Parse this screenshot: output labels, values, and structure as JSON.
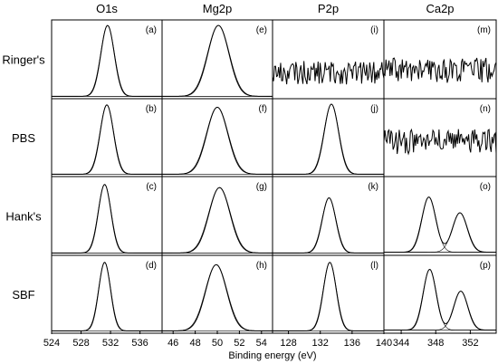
{
  "chart_data": {
    "type": "line",
    "columns": [
      "O1s",
      "Mg2p",
      "P2p",
      "Ca2p"
    ],
    "rows": [
      "Ringer's",
      "PBS",
      "Hank's",
      "SBF"
    ],
    "xlabel": "Binding energy (eV)",
    "ticks": [
      {
        "values": [
          524,
          528,
          532,
          536
        ],
        "labels": [
          "524",
          "528",
          "532",
          "536"
        ]
      },
      {
        "values": [
          46,
          48,
          50,
          52,
          54
        ],
        "labels": [
          "46",
          "48",
          "50",
          "52",
          "54"
        ]
      },
      {
        "values": [
          128,
          132,
          136,
          140
        ],
        "labels": [
          "128",
          "132",
          "136",
          "140"
        ]
      },
      {
        "values": [
          344,
          348,
          352
        ],
        "labels": [
          "344",
          "348",
          "352"
        ]
      }
    ],
    "xranges": [
      [
        524,
        539
      ],
      [
        45,
        55
      ],
      [
        126,
        140
      ],
      [
        342,
        355
      ]
    ],
    "panels": [
      {
        "label": "(a)",
        "row": 0,
        "col": 0,
        "kind": "peaks",
        "peaks": [
          {
            "center": 531.6,
            "sigma": 0.9,
            "height": 0.9
          }
        ],
        "baseline": 0.03
      },
      {
        "label": "(e)",
        "row": 0,
        "col": 1,
        "kind": "peaks",
        "peaks": [
          {
            "center": 50.1,
            "sigma": 0.95,
            "height": 0.9
          }
        ],
        "baseline": 0.03
      },
      {
        "label": "(i)",
        "row": 0,
        "col": 2,
        "kind": "noise",
        "level": 0.33,
        "amp": 0.15
      },
      {
        "label": "(m)",
        "row": 0,
        "col": 3,
        "kind": "noise",
        "level": 0.36,
        "amp": 0.16
      },
      {
        "label": "(b)",
        "row": 1,
        "col": 0,
        "kind": "peaks",
        "peaks": [
          {
            "center": 531.5,
            "sigma": 0.9,
            "height": 0.89
          }
        ],
        "baseline": 0.03
      },
      {
        "label": "(f)",
        "row": 1,
        "col": 1,
        "kind": "peaks",
        "peaks": [
          {
            "center": 50.0,
            "sigma": 0.95,
            "height": 0.86
          }
        ],
        "baseline": 0.03
      },
      {
        "label": "(j)",
        "row": 1,
        "col": 2,
        "kind": "peaks",
        "peaks": [
          {
            "center": 133.4,
            "sigma": 0.9,
            "height": 0.9
          }
        ],
        "baseline": 0.03
      },
      {
        "label": "(n)",
        "row": 1,
        "col": 3,
        "kind": "noise",
        "level": 0.45,
        "amp": 0.16
      },
      {
        "label": "(c)",
        "row": 2,
        "col": 0,
        "kind": "peaks",
        "peaks": [
          {
            "center": 531.2,
            "sigma": 0.85,
            "height": 0.87
          }
        ],
        "baseline": 0.03
      },
      {
        "label": "(g)",
        "row": 2,
        "col": 1,
        "kind": "peaks",
        "peaks": [
          {
            "center": 50.2,
            "sigma": 0.95,
            "height": 0.83
          }
        ],
        "baseline": 0.03
      },
      {
        "label": "(k)",
        "row": 2,
        "col": 2,
        "kind": "peaks",
        "peaks": [
          {
            "center": 133.1,
            "sigma": 0.85,
            "height": 0.7
          }
        ],
        "baseline": 0.03
      },
      {
        "label": "(o)",
        "row": 2,
        "col": 3,
        "kind": "peaks",
        "peaks": [
          {
            "center": 347.2,
            "sigma": 0.8,
            "height": 0.7
          },
          {
            "center": 350.8,
            "sigma": 0.85,
            "height": 0.5
          }
        ],
        "baseline": 0.04
      },
      {
        "label": "(d)",
        "row": 3,
        "col": 0,
        "kind": "peaks",
        "peaks": [
          {
            "center": 531.2,
            "sigma": 0.8,
            "height": 0.88
          }
        ],
        "baseline": 0.03
      },
      {
        "label": "(h)",
        "row": 3,
        "col": 1,
        "kind": "peaks",
        "peaks": [
          {
            "center": 49.9,
            "sigma": 0.95,
            "height": 0.85
          }
        ],
        "baseline": 0.03
      },
      {
        "label": "(l)",
        "row": 3,
        "col": 2,
        "kind": "peaks",
        "peaks": [
          {
            "center": 133.2,
            "sigma": 0.8,
            "height": 0.88
          }
        ],
        "baseline": 0.03
      },
      {
        "label": "(p)",
        "row": 3,
        "col": 3,
        "kind": "peaks",
        "peaks": [
          {
            "center": 347.3,
            "sigma": 0.75,
            "height": 0.78
          },
          {
            "center": 350.9,
            "sigma": 0.8,
            "height": 0.5
          }
        ],
        "baseline": 0.04
      }
    ]
  }
}
